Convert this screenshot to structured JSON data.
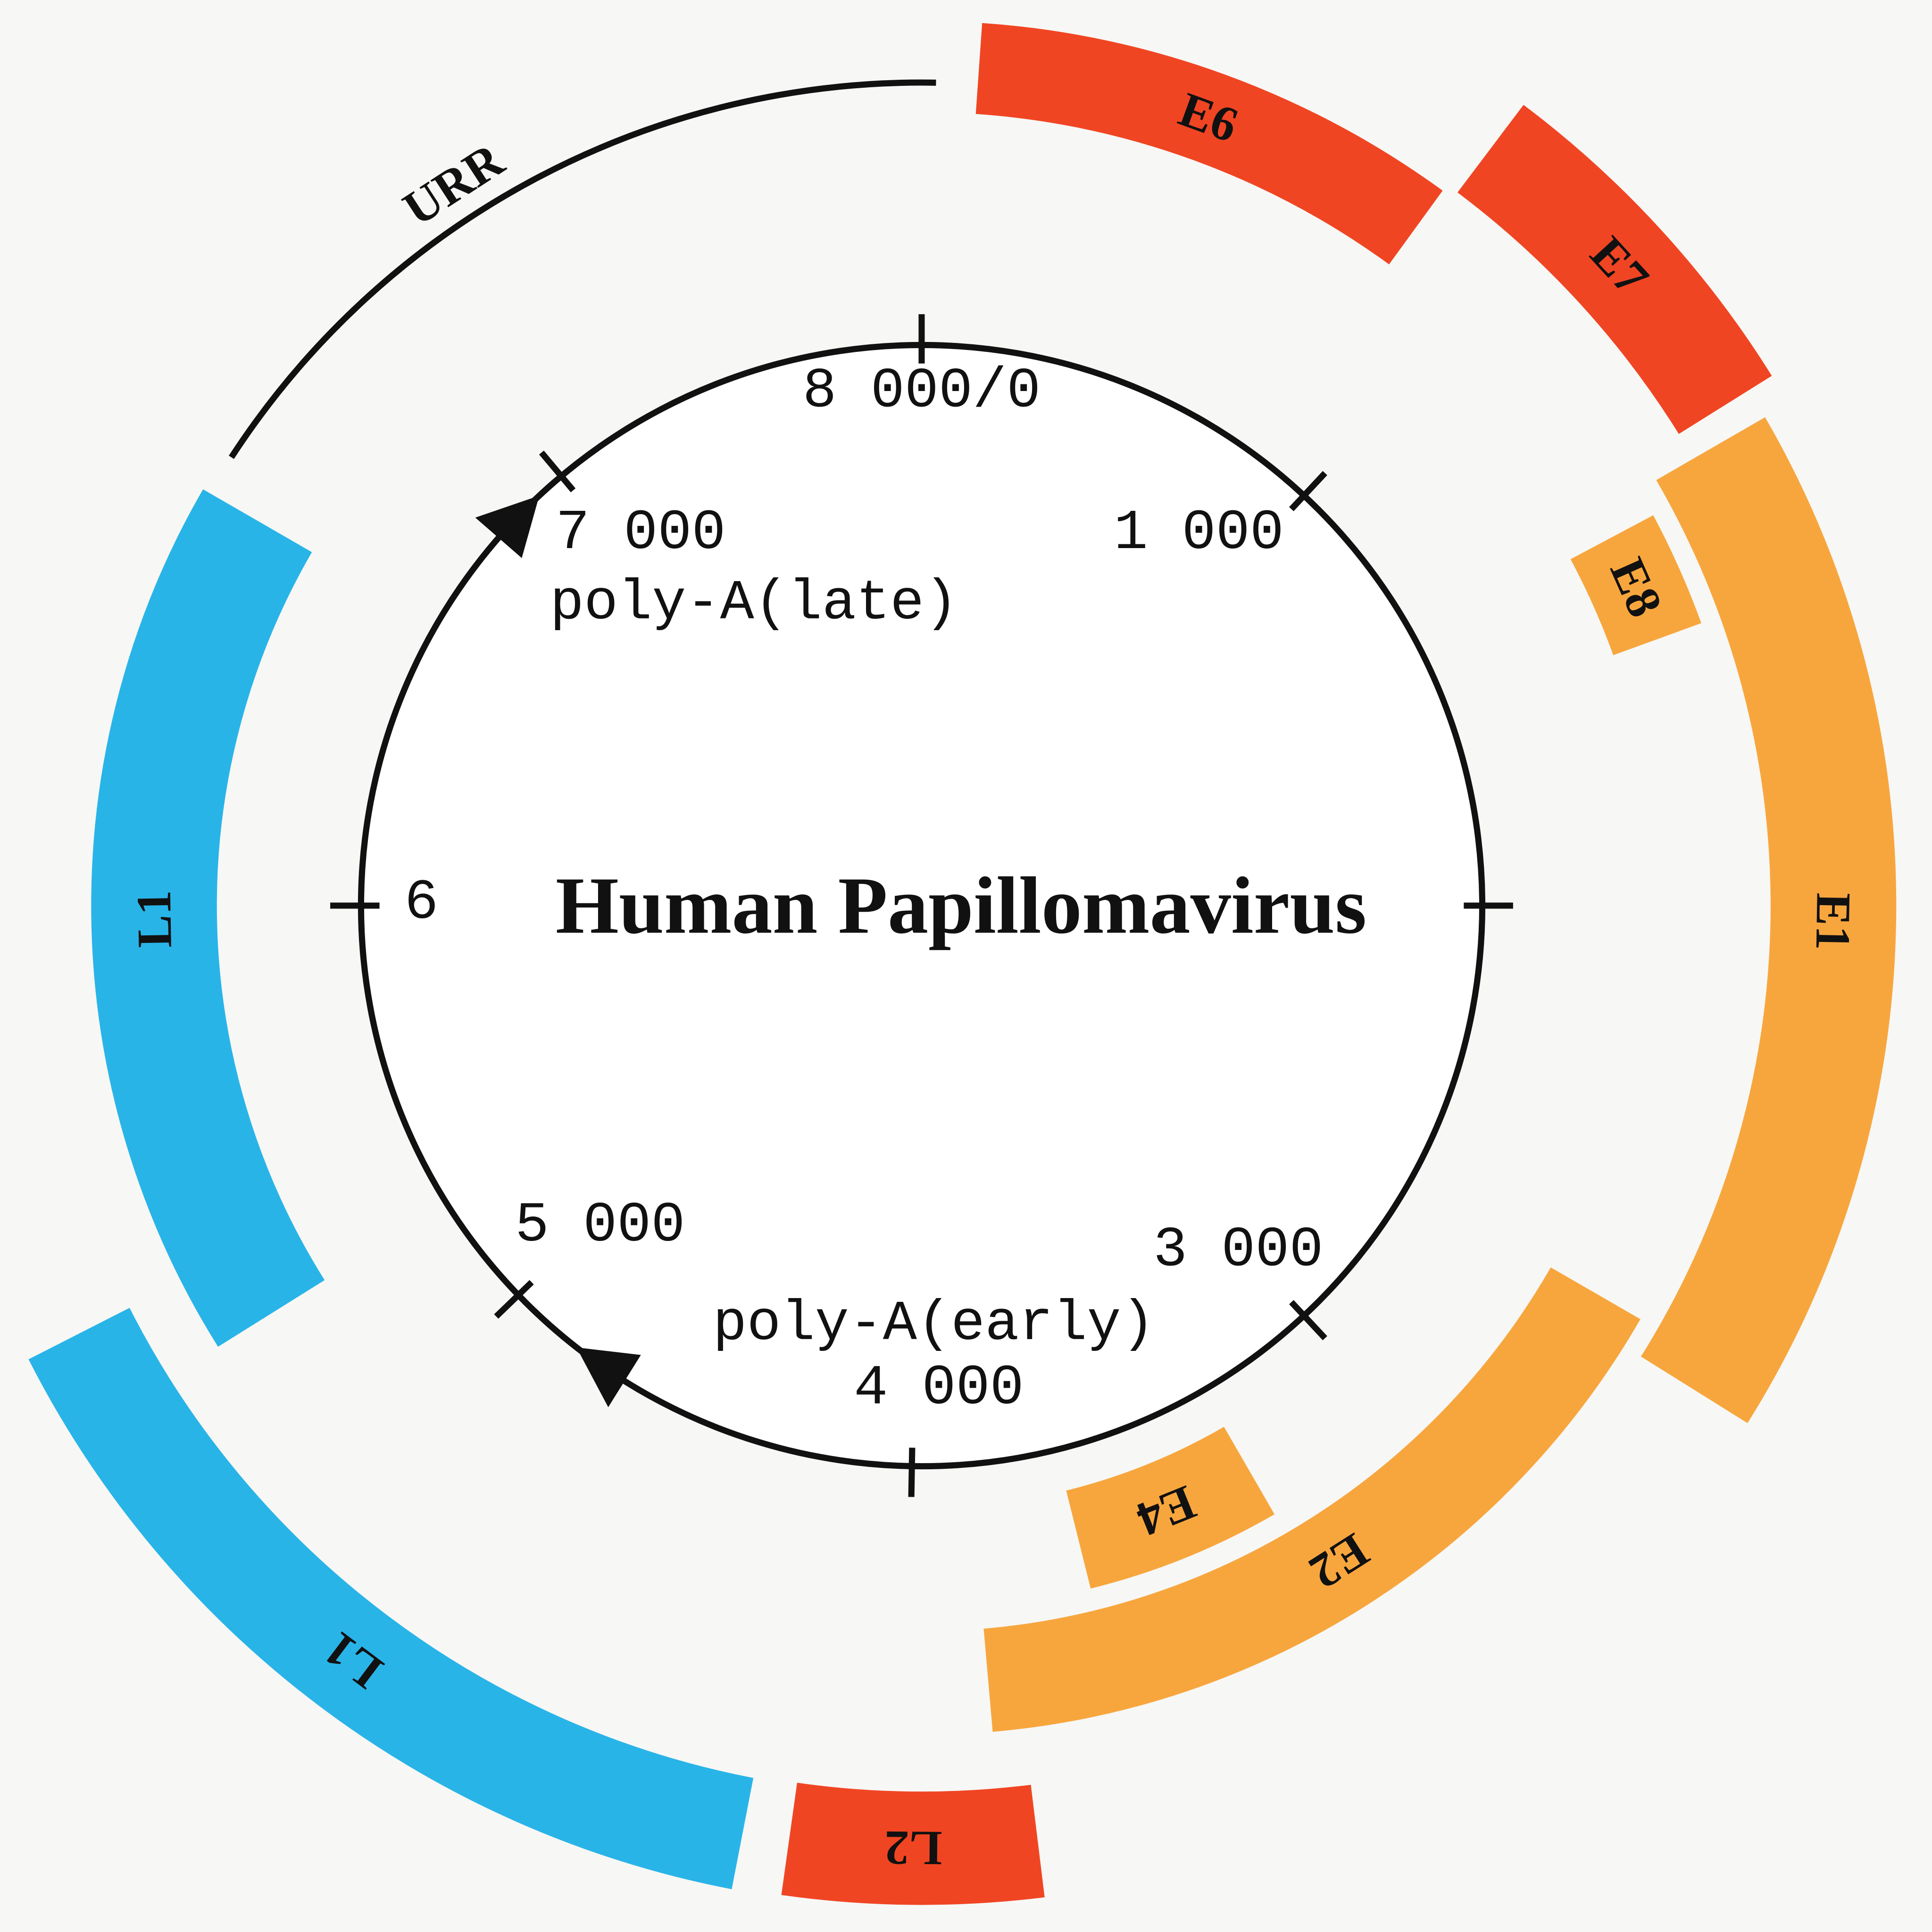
{
  "title": "Human Papillomavirus",
  "ticks": [
    "8 000/0",
    "1 000",
    "3 000",
    "4 000",
    "5 000",
    "6",
    "7 000"
  ],
  "poly_a": {
    "late": "poly-A(late)",
    "early": "poly-A(early)"
  },
  "regions": {
    "urr": "URR"
  },
  "genes": [
    "E6",
    "E7",
    "E8",
    "E1",
    "E2",
    "E4",
    "L2",
    "L1",
    "L1"
  ]
}
